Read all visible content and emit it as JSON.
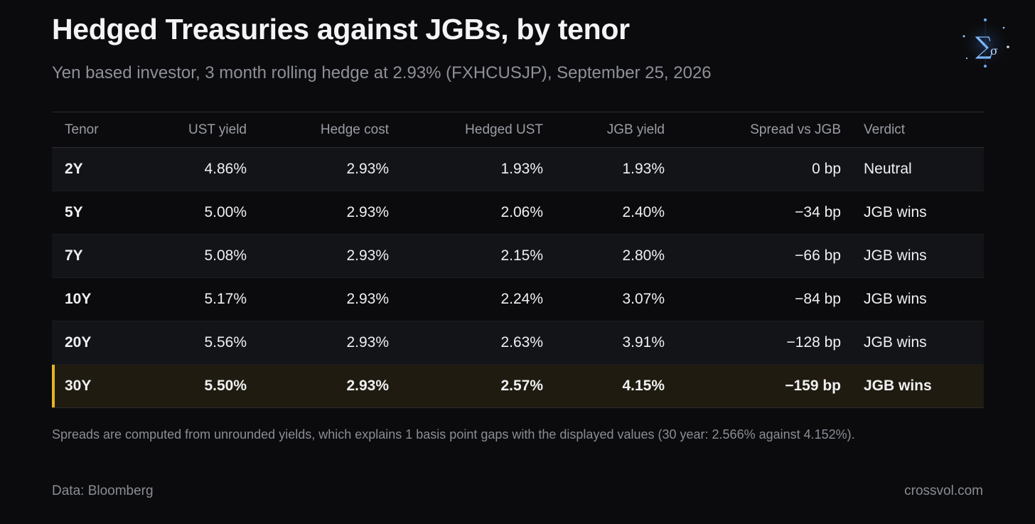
{
  "title": "Hedged Treasuries against JGBs, by tenor",
  "subtitle": "Yen based investor, 3 month rolling hedge at 2.93% (FXHCUSJP), September 25, 2026",
  "chart_data": {
    "type": "table",
    "columns": [
      "Tenor",
      "UST yield",
      "Hedge cost",
      "Hedged UST",
      "JGB yield",
      "Spread vs JGB",
      "Verdict"
    ],
    "rows": [
      [
        "2Y",
        "4.86%",
        "2.93%",
        "1.93%",
        "1.93%",
        "0 bp",
        "Neutral"
      ],
      [
        "5Y",
        "5.00%",
        "2.93%",
        "2.06%",
        "2.40%",
        "−34 bp",
        "JGB wins"
      ],
      [
        "7Y",
        "5.08%",
        "2.93%",
        "2.15%",
        "2.80%",
        "−66 bp",
        "JGB wins"
      ],
      [
        "10Y",
        "5.17%",
        "2.93%",
        "2.24%",
        "3.07%",
        "−84 bp",
        "JGB wins"
      ],
      [
        "20Y",
        "5.56%",
        "2.93%",
        "2.63%",
        "3.91%",
        "−128 bp",
        "JGB wins"
      ],
      [
        "30Y",
        "5.50%",
        "2.93%",
        "2.57%",
        "4.15%",
        "−159 bp",
        "JGB wins"
      ]
    ],
    "highlight_row": 5,
    "highlight_color": "#e6b422"
  },
  "footnote": "Spreads are computed from unrounded yields, which explains 1 basis point gaps with the displayed values (30 year: 2.566% against 4.152%).",
  "source": "Data: Bloomberg",
  "brand": "crossvol.com",
  "colors": {
    "background": "#0b0b0d",
    "accent": "#e6b422",
    "row_alt": "#131418",
    "highlight_bg": "#1f1b10"
  },
  "logo_icon": "sigma-constellation-icon"
}
